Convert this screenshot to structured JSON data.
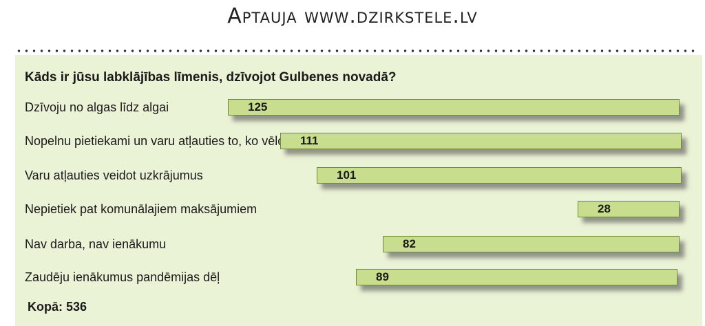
{
  "header": {
    "title": "Aptauja www.dzirkstele.lv"
  },
  "question": "Kāds ir jūsu labklājības līmenis, dzīvojot Gulbenes novadā?",
  "total_label": "Kopā: 536",
  "colors": {
    "panel": "#ebf3d7",
    "bar_fill": "#c8de8e",
    "bar_border": "#6f8a36"
  },
  "chart_data": {
    "type": "bar",
    "title": "Kāds ir jūsu labklājības līmenis, dzīvojot Gulbenes novadā?",
    "orientation": "horizontal",
    "categories": [
      "Dzīvoju no algas līdz algai",
      "Nopelnu pietiekami un varu atļauties to, ko vēlos",
      " Varu atļauties veidot uzkrājumus",
      "Nepietiek pat komunālajiem maksājumiem",
      " Nav darba, nav ienākumu",
      "Zaudēju ienākumus pandēmijas dēļ"
    ],
    "values": [
      125,
      111,
      101,
      28,
      82,
      89
    ],
    "total": 536,
    "grid": false,
    "legend": "none"
  }
}
